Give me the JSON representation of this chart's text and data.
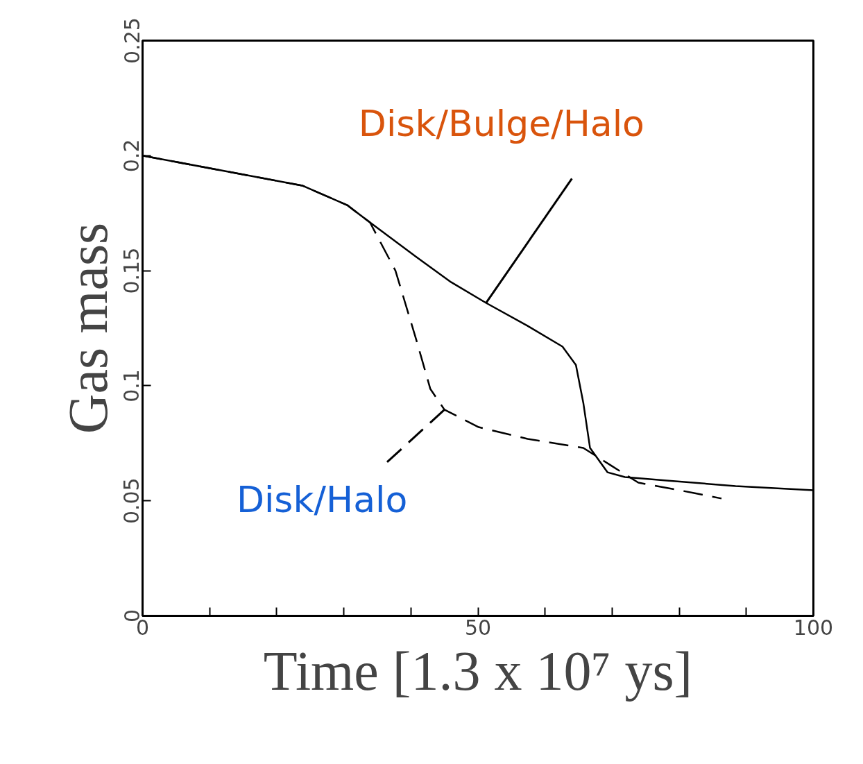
{
  "chart_data": {
    "type": "line",
    "xlabel": "Time [1.3 x 10⁷ ys]",
    "ylabel": "Gas mass",
    "xlim": [
      0,
      100
    ],
    "ylim": [
      0,
      0.25
    ],
    "xticks": [
      0,
      {
        "value": 10,
        "label": null
      },
      {
        "value": 20,
        "label": null
      },
      {
        "value": 30,
        "label": null
      },
      {
        "value": 40,
        "label": null
      },
      50,
      {
        "value": 60,
        "label": null
      },
      {
        "value": 70,
        "label": null
      },
      {
        "value": 80,
        "label": null
      },
      {
        "value": 90,
        "label": null
      },
      100
    ],
    "yticks": [
      0,
      0.05,
      0.1,
      0.15,
      0.2,
      0.25
    ],
    "grid": false,
    "series": [
      {
        "name": "Disk/Bulge/Halo",
        "color": "#000000",
        "line_style": "solid",
        "x": [
          0,
          23.8,
          30.5,
          33.9,
          40.8,
          46,
          51.2,
          57.4,
          62.6,
          64.6,
          65.7,
          66.7,
          69.3,
          71.9,
          78.1,
          88.4,
          100
        ],
        "values": [
          0.2,
          0.187,
          0.1785,
          0.171,
          0.156,
          0.145,
          0.136,
          0.126,
          0.117,
          0.109,
          0.0926,
          0.073,
          0.0624,
          0.0603,
          0.0588,
          0.0564,
          0.0546
        ]
      },
      {
        "name": "Disk/Halo",
        "color": "#000000",
        "line_style": "dashed",
        "x": [
          0,
          23.8,
          30.5,
          33.9,
          37.7,
          40.8,
          42.9,
          45,
          50.1,
          57.4,
          65.7,
          69.8,
          73.9,
          82.2,
          86.3
        ],
        "values": [
          0.2,
          0.187,
          0.1785,
          0.171,
          0.15,
          0.12,
          0.0986,
          0.0896,
          0.082,
          0.0769,
          0.073,
          0.0654,
          0.0579,
          0.0534,
          0.051
        ]
      }
    ]
  }
}
